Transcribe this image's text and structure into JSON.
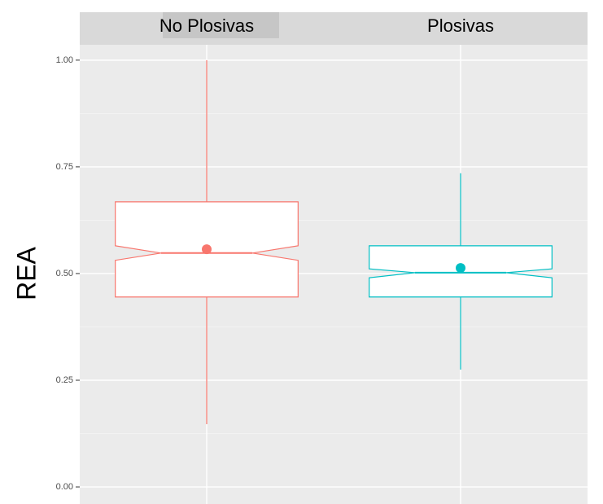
{
  "chart_data": {
    "type": "boxplot",
    "ylabel": "REA",
    "categories": [
      "No Plosivas",
      "Plosivas"
    ],
    "boxes": [
      {
        "color": "#f8766d",
        "whisker_low": 0.147,
        "q1": 0.445,
        "notch_low": 0.531,
        "median": 0.548,
        "notch_high": 0.565,
        "q3": 0.668,
        "whisker_high": 1.0,
        "mean": 0.557
      },
      {
        "color": "#00bfc4",
        "whisker_low": 0.275,
        "q1": 0.445,
        "notch_low": 0.49,
        "median": 0.502,
        "notch_high": 0.511,
        "q3": 0.565,
        "whisker_high": 0.735,
        "mean": 0.513
      }
    ],
    "ylim": [
      -0.04,
      1.036
    ],
    "yticks": [
      {
        "value": 0,
        "label": "0.00"
      },
      {
        "value": 0.25,
        "label": "0.25"
      },
      {
        "value": 0.5,
        "label": "0.50"
      },
      {
        "value": 0.75,
        "label": "0.75"
      },
      {
        "value": 1,
        "label": "1.00"
      }
    ],
    "minor_yticks": [
      0.125,
      0.375,
      0.625,
      0.875
    ],
    "grid": true
  }
}
